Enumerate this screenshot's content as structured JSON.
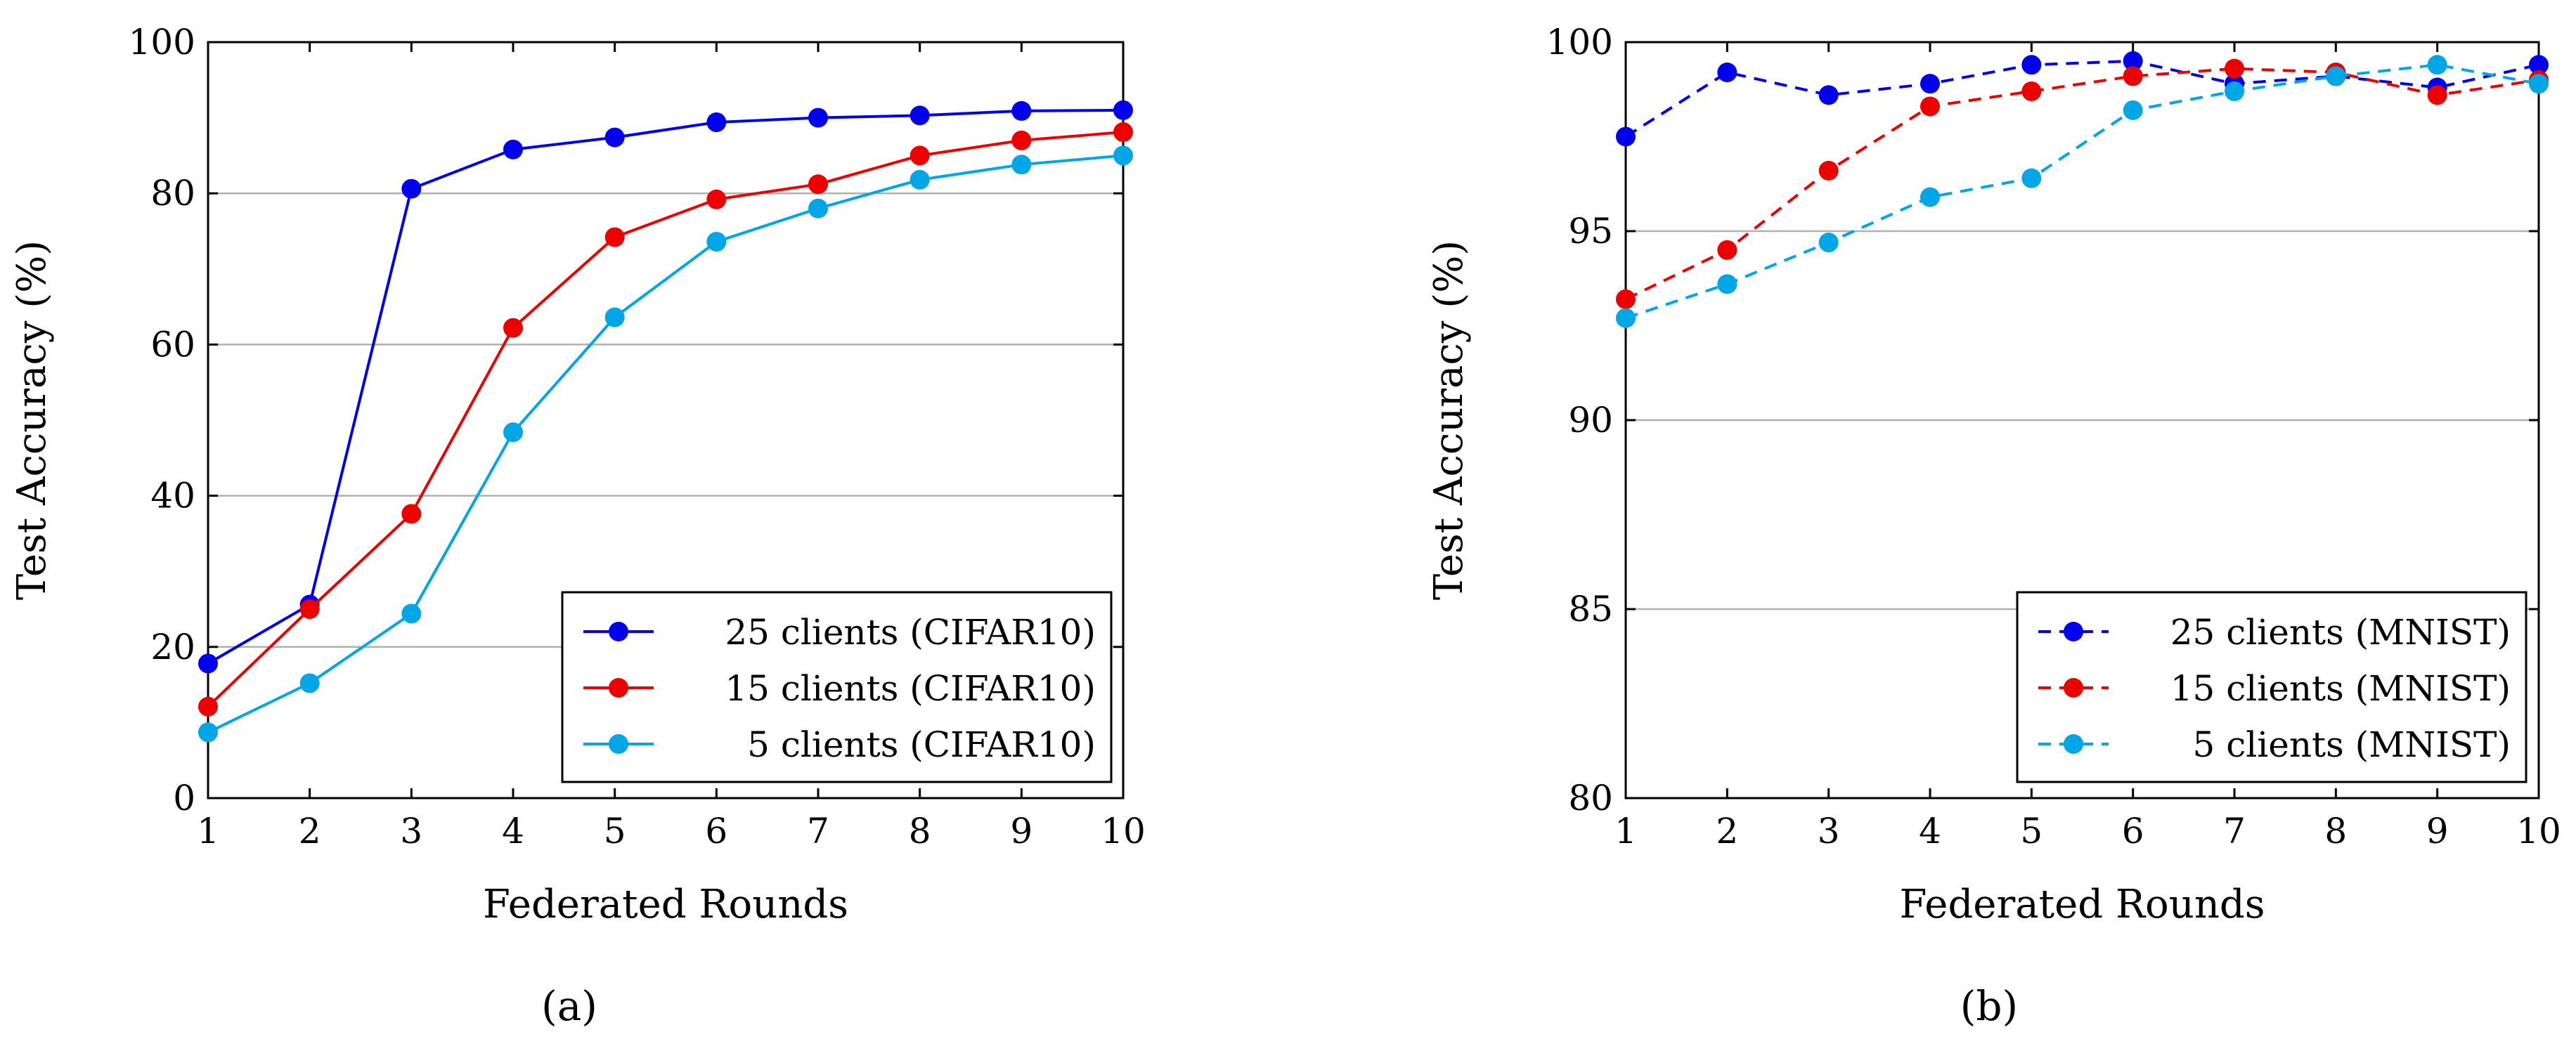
{
  "chart_data": [
    {
      "type": "line",
      "panel_label": "(a)",
      "xlabel": "Federated Rounds",
      "ylabel": "Test Accuracy (%)",
      "xlim": [
        1,
        10
      ],
      "ylim": [
        0,
        100
      ],
      "x": [
        1,
        2,
        3,
        4,
        5,
        6,
        7,
        8,
        9,
        10
      ],
      "xticks": [
        "1",
        "2",
        "3",
        "4",
        "5",
        "6",
        "7",
        "8",
        "9",
        "10"
      ],
      "yticks": [
        "0",
        "20",
        "40",
        "60",
        "80",
        "100"
      ],
      "ytick_values": [
        0,
        20,
        40,
        60,
        80,
        100
      ],
      "grid": "horizontal",
      "legend_position": "bottom-right",
      "series": [
        {
          "name": "25 clients (CIFAR10)",
          "color": "#0000ee",
          "dash": "solid",
          "values": [
            17.8,
            25.6,
            80.6,
            85.8,
            87.4,
            89.4,
            90.0,
            90.3,
            90.9,
            91.0
          ]
        },
        {
          "name": "15 clients (CIFAR10)",
          "color": "#ee0000",
          "dash": "solid",
          "values": [
            12.1,
            25.0,
            37.6,
            62.2,
            74.2,
            79.2,
            81.2,
            85.0,
            87.0,
            88.1
          ]
        },
        {
          "name": "5 clients (CIFAR10)",
          "color": "#00a6e6",
          "dash": "solid",
          "values": [
            8.7,
            15.2,
            24.4,
            48.4,
            63.6,
            73.6,
            78.0,
            81.8,
            83.8,
            85.0
          ]
        }
      ]
    },
    {
      "type": "line",
      "panel_label": "(b)",
      "xlabel": "Federated Rounds",
      "ylabel": "Test Accuracy (%)",
      "xlim": [
        1,
        10
      ],
      "ylim": [
        80,
        100
      ],
      "x": [
        1,
        2,
        3,
        4,
        5,
        6,
        7,
        8,
        9,
        10
      ],
      "xticks": [
        "1",
        "2",
        "3",
        "4",
        "5",
        "6",
        "7",
        "8",
        "9",
        "10"
      ],
      "yticks": [
        "80",
        "85",
        "90",
        "95",
        "100"
      ],
      "ytick_values": [
        80,
        85,
        90,
        95,
        100
      ],
      "grid": "horizontal",
      "legend_position": "bottom-right",
      "series": [
        {
          "name": "25 clients (MNIST)",
          "color": "#0000ee",
          "dash": "dashed",
          "values": [
            97.5,
            99.2,
            98.6,
            98.9,
            99.4,
            99.5,
            98.9,
            99.1,
            98.8,
            99.4
          ]
        },
        {
          "name": "15 clients (MNIST)",
          "color": "#ee0000",
          "dash": "dashed",
          "values": [
            93.2,
            94.5,
            96.6,
            98.3,
            98.7,
            99.1,
            99.3,
            99.2,
            98.6,
            99.0
          ]
        },
        {
          "name": "5 clients (MNIST)",
          "color": "#00a6e6",
          "dash": "dashed",
          "values": [
            92.7,
            93.6,
            94.7,
            95.9,
            96.4,
            98.2,
            98.7,
            99.1,
            99.4,
            98.9
          ]
        }
      ]
    }
  ]
}
